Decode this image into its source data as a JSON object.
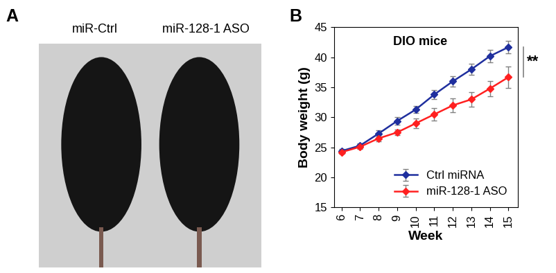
{
  "photo": {
    "panel_label": "A",
    "captions": [
      "miR-Ctrl",
      "miR-128-1 ASO"
    ]
  },
  "chart_data": {
    "type": "line",
    "panel_label": "B",
    "title": "DIO mice",
    "x_label": "Week",
    "y_label": "Body weight (g)",
    "x": [
      6,
      7,
      8,
      9,
      10,
      11,
      12,
      13,
      14,
      15
    ],
    "xlim": [
      5.6,
      15.5
    ],
    "xticks": [
      6,
      7,
      8,
      9,
      10,
      11,
      12,
      13,
      14,
      15
    ],
    "ylim": [
      15,
      45
    ],
    "yticks": [
      15,
      20,
      25,
      30,
      35,
      40,
      45
    ],
    "legend": "lower right",
    "marker": "D",
    "annotations": [
      "**"
    ],
    "series": [
      {
        "name": "Ctrl miRNA",
        "color": "#1f2f9e",
        "values": [
          24.4,
          25.3,
          27.3,
          29.4,
          31.3,
          33.8,
          36.0,
          38.0,
          40.2,
          41.7
        ],
        "errors": [
          0.3,
          0.4,
          0.5,
          0.6,
          0.6,
          0.8,
          0.9,
          0.9,
          1.0,
          1.0
        ]
      },
      {
        "name": "miR-128-1 ASO",
        "color": "#ff2020",
        "values": [
          24.2,
          25.1,
          26.5,
          27.5,
          29.0,
          30.5,
          32.0,
          33.0,
          34.8,
          36.7
        ],
        "errors": [
          0.3,
          0.4,
          0.5,
          0.5,
          0.8,
          1.0,
          1.2,
          1.2,
          1.3,
          1.8
        ]
      }
    ]
  }
}
